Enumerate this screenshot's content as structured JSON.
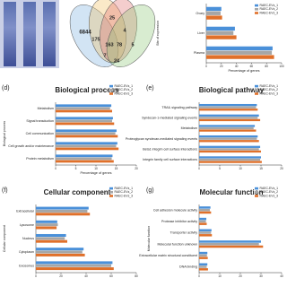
{
  "chart_data": [
    {
      "type": "bar",
      "orientation": "horizontal",
      "xlabel": "Percentage of genes",
      "ylabel": "Site of expression",
      "categories": [
        "Ovary",
        "Liver",
        "Plasma"
      ],
      "series": [
        {
          "name": "RAEC-EVs_1",
          "color": "#4a90d9",
          "values": [
            20,
            38,
            88
          ]
        },
        {
          "name": "RAEC-EVs_2",
          "color": "#a6a6a6",
          "values": [
            19,
            36,
            87
          ]
        },
        {
          "name": "RAEC-EVs_3",
          "color": "#e0702a",
          "values": [
            21,
            40,
            90
          ]
        }
      ],
      "xlim": [
        0,
        100
      ],
      "xticks": [
        0,
        20,
        40,
        60,
        80,
        100
      ]
    },
    {
      "type": "bar",
      "orientation": "horizontal",
      "title": "Biological process",
      "xlabel": "Percentage of genes",
      "ylabel": "Biological process",
      "categories": [
        "Metabolism",
        "Signal transduction",
        "Cell communication",
        "Cell growth and/or maintenance",
        "Protein metabolism"
      ],
      "series": [
        {
          "name": "RAEC-EVs_1",
          "color": "#4a90d9",
          "values": [
            13.8,
            14.2,
            15.1,
            15.3,
            14.1
          ]
        },
        {
          "name": "RAEC-EVs_2",
          "color": "#a6a6a6",
          "values": [
            13.5,
            14.0,
            14.8,
            15.0,
            13.9
          ]
        },
        {
          "name": "RAEC-EVs_3",
          "color": "#e0702a",
          "values": [
            14.0,
            14.5,
            15.4,
            15.6,
            14.4
          ]
        }
      ],
      "xlim": [
        0,
        20
      ],
      "xticks": [
        0,
        5,
        10,
        15,
        20
      ]
    },
    {
      "type": "bar",
      "orientation": "horizontal",
      "title": "Biological pathway",
      "categories": [
        "TRAIL signaling pathway",
        "Syndecan-1-mediated signaling events",
        "Metabolism",
        "Proteoglycan syndecan-mediated signaling events",
        "Beta1 integrin cell surface interactions",
        "Integrin family cell surface interactions"
      ],
      "series": [
        {
          "name": "RAEC-EVs_1",
          "color": "#4a90d9",
          "values": [
            14,
            14.5,
            13.5,
            14.2,
            14.8,
            15
          ]
        },
        {
          "name": "RAEC-EVs_2",
          "color": "#a6a6a6",
          "values": [
            13.8,
            14.2,
            13.2,
            14.0,
            14.5,
            14.8
          ]
        },
        {
          "name": "RAEC-EVs_3",
          "color": "#e0702a",
          "values": [
            14.2,
            14.8,
            13.8,
            14.5,
            15.0,
            15.2
          ]
        }
      ],
      "xlim": [
        0,
        20
      ],
      "xticks": [
        0,
        5,
        10,
        15,
        20
      ]
    },
    {
      "type": "bar",
      "orientation": "horizontal",
      "title": "Cellular component",
      "ylabel": "Cellular component",
      "categories": [
        "Extracellular",
        "Lysosome",
        "Nucleus",
        "Cytoplasm",
        "Exosomes"
      ],
      "series": [
        {
          "name": "RAEC-EVs_1",
          "color": "#4a90d9",
          "values": [
            42,
            17,
            24,
            38,
            61
          ]
        },
        {
          "name": "RAEC-EVs_2",
          "color": "#a6a6a6",
          "values": [
            41,
            17.5,
            23,
            37,
            60
          ]
        },
        {
          "name": "RAEC-EVs_3",
          "color": "#e0702a",
          "values": [
            43,
            16.5,
            25,
            39,
            62
          ]
        }
      ],
      "xlim": [
        0,
        80
      ],
      "xticks": [
        0,
        20,
        40,
        60,
        80
      ]
    },
    {
      "type": "bar",
      "orientation": "horizontal",
      "title": "Molecular function",
      "ylabel": "Molecular function",
      "categories": [
        "Cell adhesion molecule activity",
        "Protease inhibitor activity",
        "Transporter activity",
        "Molecular function unknown",
        "Extracellular matrix structural constituent",
        "DNA binding"
      ],
      "series": [
        {
          "name": "RAEC-EVs_1",
          "color": "#4a90d9",
          "values": [
            5.5,
            3.5,
            6,
            30,
            4,
            4
          ]
        },
        {
          "name": "RAEC-EVs_2",
          "color": "#a6a6a6",
          "values": [
            5.2,
            3.3,
            5.8,
            29,
            3.8,
            3.7
          ]
        },
        {
          "name": "RAEC-EVs_3",
          "color": "#e0702a",
          "values": [
            5.8,
            3.7,
            6.2,
            31,
            4.2,
            4.3
          ]
        }
      ],
      "xlim": [
        0,
        40
      ],
      "xticks": [
        0,
        10,
        20,
        30,
        40
      ]
    }
  ],
  "panel_labels": [
    "(d)",
    "(e)",
    "(f)",
    "(g)"
  ],
  "venn": {
    "numbers": [
      "6844",
      "175",
      "163",
      "25",
      "4",
      "78",
      "7",
      "24",
      "5"
    ]
  }
}
